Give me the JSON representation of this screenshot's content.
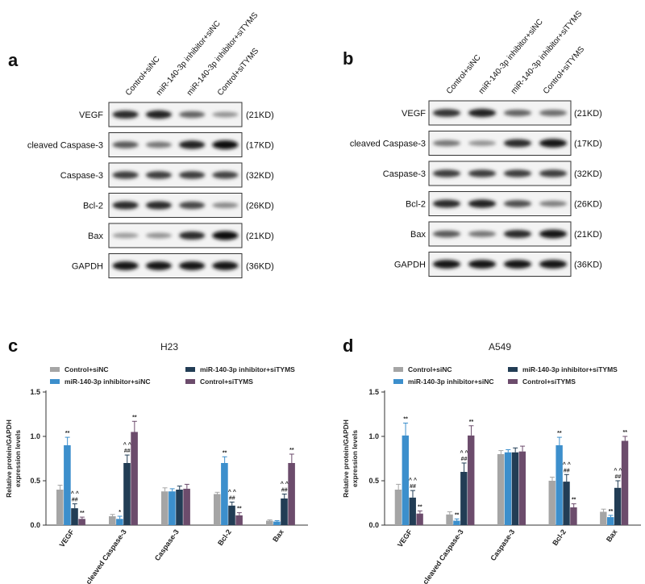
{
  "blots": [
    {
      "letter": "a",
      "lanes": [
        "Control+siNC",
        "miR-140-3p inhibitor+siNC",
        "miR-140-3p inhibitor+siTYMS",
        "Control+siTYMS"
      ],
      "rows": [
        {
          "protein": "VEGF",
          "kd": "(21KD)",
          "bands": [
            0.85,
            0.9,
            0.55,
            0.3
          ]
        },
        {
          "protein": "cleaved Caspase-3",
          "kd": "(17KD)",
          "bands": [
            0.6,
            0.45,
            0.9,
            1.0
          ]
        },
        {
          "protein": "Caspase-3",
          "kd": "(32KD)",
          "bands": [
            0.75,
            0.75,
            0.75,
            0.72
          ]
        },
        {
          "protein": "Bcl-2",
          "kd": "(26KD)",
          "bands": [
            0.85,
            0.85,
            0.7,
            0.35
          ]
        },
        {
          "protein": "Bax",
          "kd": "(21KD)",
          "bands": [
            0.25,
            0.3,
            0.85,
            1.0
          ]
        },
        {
          "protein": "GAPDH",
          "kd": "(36KD)",
          "bands": [
            0.95,
            0.95,
            0.95,
            0.95
          ]
        }
      ]
    },
    {
      "letter": "b",
      "lanes": [
        "Control+siNC",
        "miR-140-3p inhibitor+siNC",
        "miR-140-3p inhibitor+siTYMS",
        "Control+siTYMS"
      ],
      "rows": [
        {
          "protein": "VEGF",
          "kd": "(21KD)",
          "bands": [
            0.8,
            0.9,
            0.55,
            0.5
          ]
        },
        {
          "protein": "cleaved Caspase-3",
          "kd": "(17KD)",
          "bands": [
            0.45,
            0.3,
            0.85,
            0.95
          ]
        },
        {
          "protein": "Caspase-3",
          "kd": "(32KD)",
          "bands": [
            0.75,
            0.75,
            0.75,
            0.75
          ]
        },
        {
          "protein": "Bcl-2",
          "kd": "(26KD)",
          "bands": [
            0.85,
            0.9,
            0.65,
            0.4
          ]
        },
        {
          "protein": "Bax",
          "kd": "(21KD)",
          "bands": [
            0.6,
            0.45,
            0.85,
            0.95
          ]
        },
        {
          "protein": "GAPDH",
          "kd": "(36KD)",
          "bands": [
            0.95,
            0.95,
            0.95,
            0.95
          ]
        }
      ]
    }
  ],
  "chart_data": [
    {
      "letter": "c",
      "type": "bar",
      "title": "H23",
      "ylabel": [
        "Relative protein/GAPDH",
        "expression levels"
      ],
      "ylim": [
        0,
        1.5
      ],
      "yticks": [
        "0.0",
        "0.5",
        "1.0",
        "1.5"
      ],
      "categories": [
        "VEGF",
        "cleaved Caspase-3",
        "Caspase-3",
        "Bcl-2",
        "Bax"
      ],
      "legend": "top",
      "series": [
        {
          "name": "Control+siNC",
          "color": "#a5a5a5",
          "values": [
            0.4,
            0.1,
            0.38,
            0.35,
            0.05
          ],
          "errors": [
            0.05,
            0.02,
            0.04,
            0.02,
            0.01
          ],
          "sig": [
            "",
            "",
            "",
            "",
            ""
          ]
        },
        {
          "name": "miR-140-3p inhibitor+siNC",
          "color": "#3c8fcc",
          "values": [
            0.9,
            0.07,
            0.38,
            0.7,
            0.04
          ],
          "errors": [
            0.09,
            0.03,
            0.03,
            0.07,
            0.01
          ],
          "sig": [
            "**",
            "*",
            "",
            "**",
            ""
          ]
        },
        {
          "name": "miR-140-3p inhibitor+siTYMS",
          "color": "#223d55",
          "values": [
            0.19,
            0.7,
            0.4,
            0.22,
            0.3
          ],
          "errors": [
            0.05,
            0.09,
            0.04,
            0.04,
            0.05
          ],
          "sig": [
            "^ ^\n##",
            "^ ^\n##",
            "",
            "^ ^\n##",
            "^ ^\n##"
          ]
        },
        {
          "name": "Control+siTYMS",
          "color": "#6c4c6c",
          "values": [
            0.07,
            1.05,
            0.41,
            0.11,
            0.7
          ],
          "errors": [
            0.02,
            0.12,
            0.05,
            0.03,
            0.1
          ],
          "sig": [
            "**",
            "**",
            "",
            "**",
            "**"
          ]
        }
      ]
    },
    {
      "letter": "d",
      "type": "bar",
      "title": "A549",
      "ylabel": [
        "Relative protein/GAPDH",
        "expression levels"
      ],
      "ylim": [
        0,
        1.5
      ],
      "yticks": [
        "0.0",
        "0.5",
        "1.0",
        "1.5"
      ],
      "categories": [
        "VEGF",
        "cleaved Caspase-3",
        "Caspase-3",
        "Bcl-2",
        "Bax"
      ],
      "legend": "top",
      "series": [
        {
          "name": "Control+siNC",
          "color": "#a5a5a5",
          "values": [
            0.4,
            0.12,
            0.8,
            0.5,
            0.15
          ],
          "errors": [
            0.06,
            0.03,
            0.04,
            0.04,
            0.03
          ],
          "sig": [
            "",
            "",
            "",
            "",
            ""
          ]
        },
        {
          "name": "miR-140-3p inhibitor+siNC",
          "color": "#3c8fcc",
          "values": [
            1.01,
            0.05,
            0.82,
            0.9,
            0.09
          ],
          "errors": [
            0.14,
            0.02,
            0.03,
            0.09,
            0.02
          ],
          "sig": [
            "**",
            "**",
            "",
            "**",
            "**"
          ]
        },
        {
          "name": "miR-140-3p inhibitor+siTYMS",
          "color": "#223d55",
          "values": [
            0.31,
            0.6,
            0.82,
            0.49,
            0.42
          ],
          "errors": [
            0.08,
            0.1,
            0.05,
            0.08,
            0.08
          ],
          "sig": [
            "^ ^\n##",
            "^ ^\n##",
            "",
            "^ ^\n##",
            "^ ^\n##"
          ]
        },
        {
          "name": "Control+siTYMS",
          "color": "#6c4c6c",
          "values": [
            0.13,
            1.01,
            0.83,
            0.2,
            0.95
          ],
          "errors": [
            0.03,
            0.11,
            0.06,
            0.04,
            0.05
          ],
          "sig": [
            "**",
            "**",
            "",
            "**",
            "**"
          ]
        }
      ]
    }
  ]
}
